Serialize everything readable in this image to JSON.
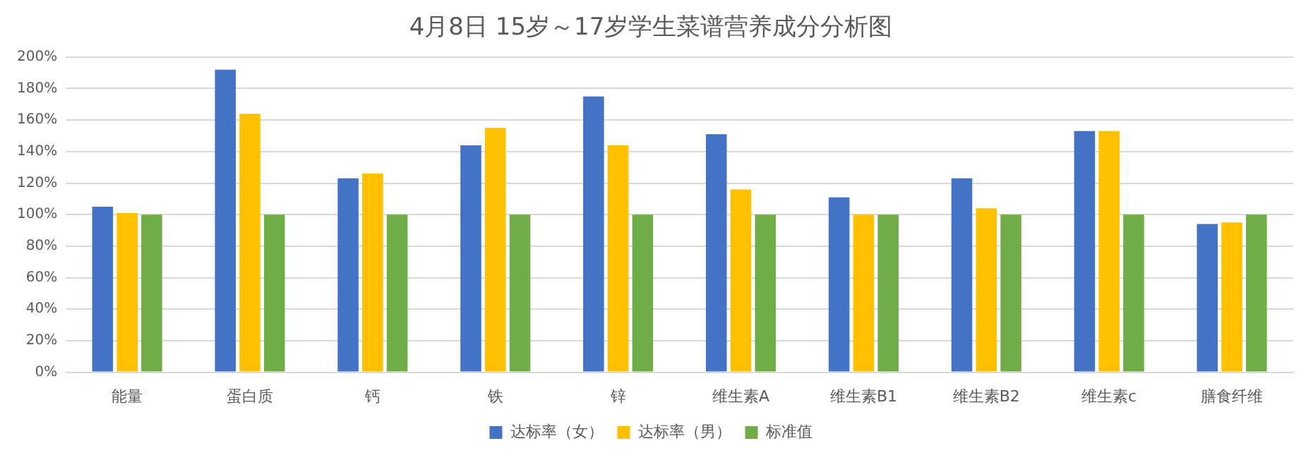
{
  "chart_data": {
    "type": "bar",
    "title": "4月8日 15岁～17岁学生菜谱营养成分分析图",
    "categories": [
      "能量",
      "蛋白质",
      "钙",
      "铁",
      "锌",
      "维生素A",
      "维生素B1",
      "维生素B2",
      "维生素c",
      "膳食纤维"
    ],
    "series": [
      {
        "name": "达标率（女）",
        "color": "#4472c4",
        "values": [
          105,
          192,
          123,
          144,
          175,
          151,
          111,
          123,
          153,
          94
        ]
      },
      {
        "name": "达标率（男）",
        "color": "#ffc000",
        "values": [
          101,
          164,
          126,
          155,
          144,
          116,
          100,
          104,
          153,
          95
        ]
      },
      {
        "name": "标准值",
        "color": "#70ad47",
        "values": [
          100,
          100,
          100,
          100,
          100,
          100,
          100,
          100,
          100,
          100
        ]
      }
    ],
    "ylim": [
      0,
      200
    ],
    "yticks": [
      {
        "value": 0,
        "label": "0%"
      },
      {
        "value": 20,
        "label": "20%"
      },
      {
        "value": 40,
        "label": "40%"
      },
      {
        "value": 60,
        "label": "60%"
      },
      {
        "value": 80,
        "label": "80%"
      },
      {
        "value": 100,
        "label": "100%"
      },
      {
        "value": 120,
        "label": "120%"
      },
      {
        "value": 140,
        "label": "140%"
      },
      {
        "value": 160,
        "label": "160%"
      },
      {
        "value": 180,
        "label": "180%"
      },
      {
        "value": 200,
        "label": "200%"
      }
    ],
    "grid": "y",
    "legend": "bottom"
  }
}
